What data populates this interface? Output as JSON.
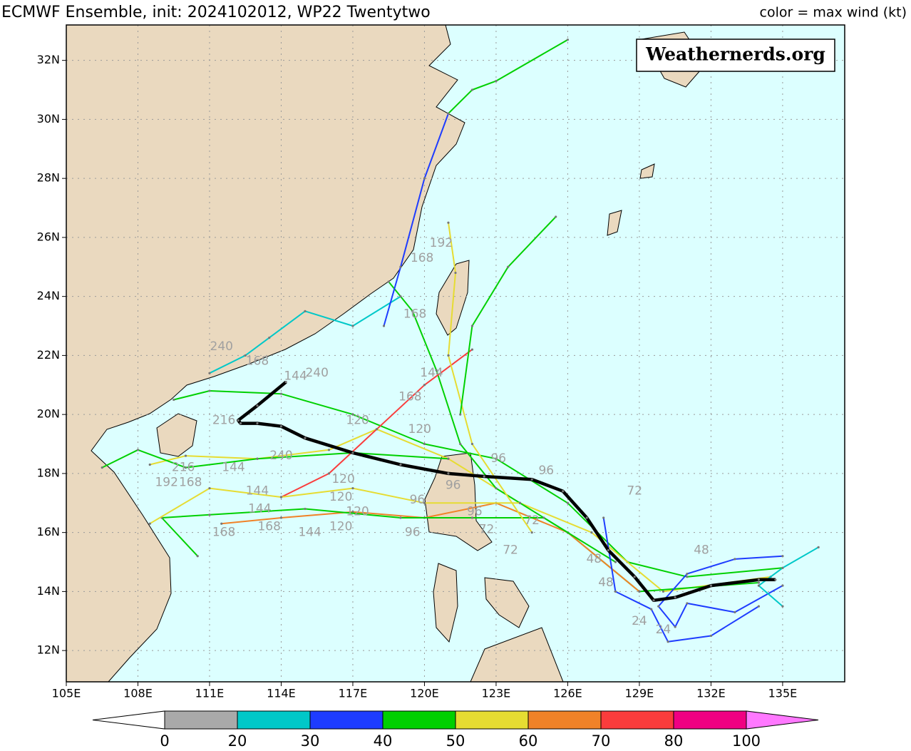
{
  "chart_data": {
    "type": "track-map",
    "title": "ECMWF Ensemble, init: 2024102012, WP22 Twentytwo",
    "subtitle": "color = max wind (kt)",
    "watermark": "Weathernerds.org",
    "xlim": [
      105,
      137.6
    ],
    "ylim": [
      10.94,
      33.2
    ],
    "xticks": [
      {
        "value": 105,
        "label": "105E"
      },
      {
        "value": 108,
        "label": "108E"
      },
      {
        "value": 111,
        "label": "111E"
      },
      {
        "value": 114,
        "label": "114E"
      },
      {
        "value": 117,
        "label": "117E"
      },
      {
        "value": 120,
        "label": "120E"
      },
      {
        "value": 123,
        "label": "123E"
      },
      {
        "value": 126,
        "label": "126E"
      },
      {
        "value": 129,
        "label": "129E"
      },
      {
        "value": 132,
        "label": "132E"
      },
      {
        "value": 135,
        "label": "135E"
      }
    ],
    "yticks": [
      {
        "value": 12,
        "label": "12N"
      },
      {
        "value": 14,
        "label": "14N"
      },
      {
        "value": 16,
        "label": "16N"
      },
      {
        "value": 18,
        "label": "18N"
      },
      {
        "value": 20,
        "label": "20N"
      },
      {
        "value": 22,
        "label": "22N"
      },
      {
        "value": 24,
        "label": "24N"
      },
      {
        "value": 26,
        "label": "26N"
      },
      {
        "value": 28,
        "label": "28N"
      },
      {
        "value": 30,
        "label": "30N"
      },
      {
        "value": 32,
        "label": "32N"
      }
    ],
    "grid": true,
    "mean_track": {
      "color": "#000000",
      "lon": [
        134.7,
        134.0,
        132.0,
        130.5,
        129.6,
        128.8,
        127.7,
        126.8,
        125.8,
        124.5,
        122.5,
        121.0,
        119.0,
        117.0,
        115.0,
        114.0,
        113.0,
        112.3,
        112.2,
        113.0,
        114.2
      ],
      "lat": [
        14.4,
        14.4,
        14.2,
        13.8,
        13.7,
        14.5,
        15.4,
        16.5,
        17.4,
        17.8,
        17.9,
        18.0,
        18.3,
        18.7,
        19.2,
        19.6,
        19.7,
        19.7,
        19.8,
        20.3,
        21.1
      ]
    },
    "series": [
      {
        "color": "#00d000",
        "lon": [
          135,
          131,
          128.5,
          126,
          123,
          120,
          117,
          114,
          111,
          109.5
        ],
        "lat": [
          14.8,
          14.5,
          15,
          17,
          18.5,
          19,
          20,
          20.7,
          20.8,
          20.5
        ]
      },
      {
        "color": "#e6dc32",
        "lon": [
          134.5,
          130,
          127,
          124,
          121,
          118,
          116,
          113,
          110,
          108.5
        ],
        "lat": [
          14.5,
          14,
          16,
          17,
          18.5,
          19.5,
          18.8,
          18.5,
          18.6,
          18.3
        ]
      },
      {
        "color": "#00d000",
        "lon": [
          134,
          129,
          126,
          123,
          121.5,
          120.5,
          119.5,
          118.5
        ],
        "lat": [
          14.3,
          14,
          16,
          17.5,
          19,
          21.5,
          23.5,
          24.5
        ]
      },
      {
        "color": "#00c8c8",
        "lon": [
          119,
          117,
          115,
          113.5,
          112.5,
          111
        ],
        "lat": [
          24,
          23,
          23.5,
          22.6,
          22,
          21.4
        ]
      },
      {
        "color": "#1e3cff",
        "lon": [
          118.3,
          119,
          120,
          121
        ],
        "lat": [
          23,
          25,
          28,
          30.2
        ]
      },
      {
        "color": "#00d000",
        "lon": [
          121,
          122,
          123,
          126
        ],
        "lat": [
          30.2,
          31,
          31.3,
          32.7
        ]
      },
      {
        "color": "#f08228",
        "lon": [
          129,
          126,
          123,
          120,
          117,
          114,
          111.5
        ],
        "lat": [
          14,
          16,
          17,
          16.5,
          16.7,
          16.5,
          16.3
        ]
      },
      {
        "color": "#fa3c3c",
        "lon": [
          122,
          120,
          118,
          116,
          114
        ],
        "lat": [
          22.2,
          21,
          19.5,
          18,
          17.2
        ]
      },
      {
        "color": "#00d000",
        "lon": [
          128,
          125,
          122,
          119,
          115,
          111,
          109,
          110.5
        ],
        "lat": [
          15,
          16.5,
          16.5,
          16.5,
          16.8,
          16.6,
          16.5,
          15.2
        ]
      },
      {
        "color": "#e6dc32",
        "lon": [
          124,
          120,
          117,
          114,
          111,
          108.5
        ],
        "lat": [
          17,
          17,
          17.5,
          17.2,
          17.5,
          16.3
        ]
      },
      {
        "color": "#00d000",
        "lon": [
          121,
          117,
          113,
          110,
          108,
          106.5
        ],
        "lat": [
          18.5,
          18.7,
          18.5,
          18.2,
          18.8,
          18.2
        ]
      },
      {
        "color": "#1e3cff",
        "lon": [
          135,
          133,
          131,
          129.8,
          130.5,
          131,
          133,
          135
        ],
        "lat": [
          15.2,
          15.1,
          14.6,
          13.5,
          12.8,
          13.6,
          13.3,
          14.2
        ]
      },
      {
        "color": "#1e3cff",
        "lon": [
          134,
          132,
          130.2,
          129.5,
          128,
          127.5
        ],
        "lat": [
          13.5,
          12.5,
          12.3,
          13.4,
          14,
          16.5
        ]
      },
      {
        "color": "#00c8c8",
        "lon": [
          136.5,
          135,
          134,
          135
        ],
        "lat": [
          15.5,
          14.8,
          14.2,
          13.5
        ]
      },
      {
        "color": "#e6dc32",
        "lon": [
          124.5,
          122,
          121,
          121.3,
          121
        ],
        "lat": [
          16,
          19,
          22,
          24.8,
          26.5
        ]
      },
      {
        "color": "#00d000",
        "lon": [
          125.5,
          123.5,
          122,
          121.5
        ],
        "lat": [
          26.7,
          25,
          23,
          20
        ]
      }
    ],
    "annotations": [
      {
        "lon": 111.5,
        "lat": 22.3,
        "hour": 240
      },
      {
        "lon": 111.6,
        "lat": 19.8,
        "hour": 216
      },
      {
        "lon": 114,
        "lat": 18.6,
        "hour": 240
      },
      {
        "lon": 112,
        "lat": 18.2,
        "hour": 144
      },
      {
        "lon": 120.3,
        "lat": 21.4,
        "hour": 144
      },
      {
        "lon": 119.4,
        "lat": 20.6,
        "hour": 168
      },
      {
        "lon": 117.2,
        "lat": 19.8,
        "hour": 120
      },
      {
        "lon": 119.8,
        "lat": 19.5,
        "hour": 120
      },
      {
        "lon": 116.6,
        "lat": 17.8,
        "hour": 120
      },
      {
        "lon": 116.5,
        "lat": 17.2,
        "hour": 120
      },
      {
        "lon": 117.2,
        "lat": 16.7,
        "hour": 120
      },
      {
        "lon": 116.5,
        "lat": 16.2,
        "hour": 120
      },
      {
        "lon": 119.5,
        "lat": 16.0,
        "hour": 96
      },
      {
        "lon": 119.7,
        "lat": 17.1,
        "hour": 96
      },
      {
        "lon": 121.2,
        "lat": 17.6,
        "hour": 96
      },
      {
        "lon": 122.1,
        "lat": 16.7,
        "hour": 96
      },
      {
        "lon": 123.1,
        "lat": 18.5,
        "hour": 96
      },
      {
        "lon": 125.1,
        "lat": 18.1,
        "hour": 96
      },
      {
        "lon": 128.8,
        "lat": 17.4,
        "hour": 72
      },
      {
        "lon": 122.6,
        "lat": 16.1,
        "hour": 72
      },
      {
        "lon": 123.6,
        "lat": 15.4,
        "hour": 72
      },
      {
        "lon": 124.5,
        "lat": 16.4,
        "hour": 72
      },
      {
        "lon": 131.6,
        "lat": 15.4,
        "hour": 48
      },
      {
        "lon": 127.1,
        "lat": 15.1,
        "hour": 48
      },
      {
        "lon": 127.6,
        "lat": 14.3,
        "hour": 48
      },
      {
        "lon": 129.0,
        "lat": 13.0,
        "hour": 24
      },
      {
        "lon": 130.0,
        "lat": 12.7,
        "hour": 24
      },
      {
        "lon": 109.9,
        "lat": 18.2,
        "hour": 216
      },
      {
        "lon": 110.2,
        "lat": 17.7,
        "hour": 168
      },
      {
        "lon": 109.2,
        "lat": 17.7,
        "hour": 192
      },
      {
        "lon": 111.6,
        "lat": 16.0,
        "hour": 168
      },
      {
        "lon": 113.5,
        "lat": 16.2,
        "hour": 168
      },
      {
        "lon": 115.2,
        "lat": 16.0,
        "hour": 144
      },
      {
        "lon": 113.1,
        "lat": 16.8,
        "hour": 144
      },
      {
        "lon": 119.9,
        "lat": 25.3,
        "hour": 168
      },
      {
        "lon": 119.6,
        "lat": 23.4,
        "hour": 168
      },
      {
        "lon": 120.7,
        "lat": 25.8,
        "hour": 192
      },
      {
        "lon": 114.6,
        "lat": 21.3,
        "hour": 144
      },
      {
        "lon": 113.0,
        "lat": 21.8,
        "hour": 168
      },
      {
        "lon": 115.5,
        "lat": 21.4,
        "hour": 240
      },
      {
        "lon": 113.0,
        "lat": 17.4,
        "hour": 144
      }
    ],
    "colorbar": {
      "bounds": [
        0,
        20,
        30,
        40,
        50,
        60,
        70,
        80,
        100
      ],
      "colors": [
        "#a9a9a9",
        "#00c8c8",
        "#1e3cff",
        "#00d000",
        "#e6dc32",
        "#f08228",
        "#fa3c3c",
        "#f00082"
      ],
      "under_color": "#ffffff",
      "over_color": "#ff78ff"
    }
  }
}
